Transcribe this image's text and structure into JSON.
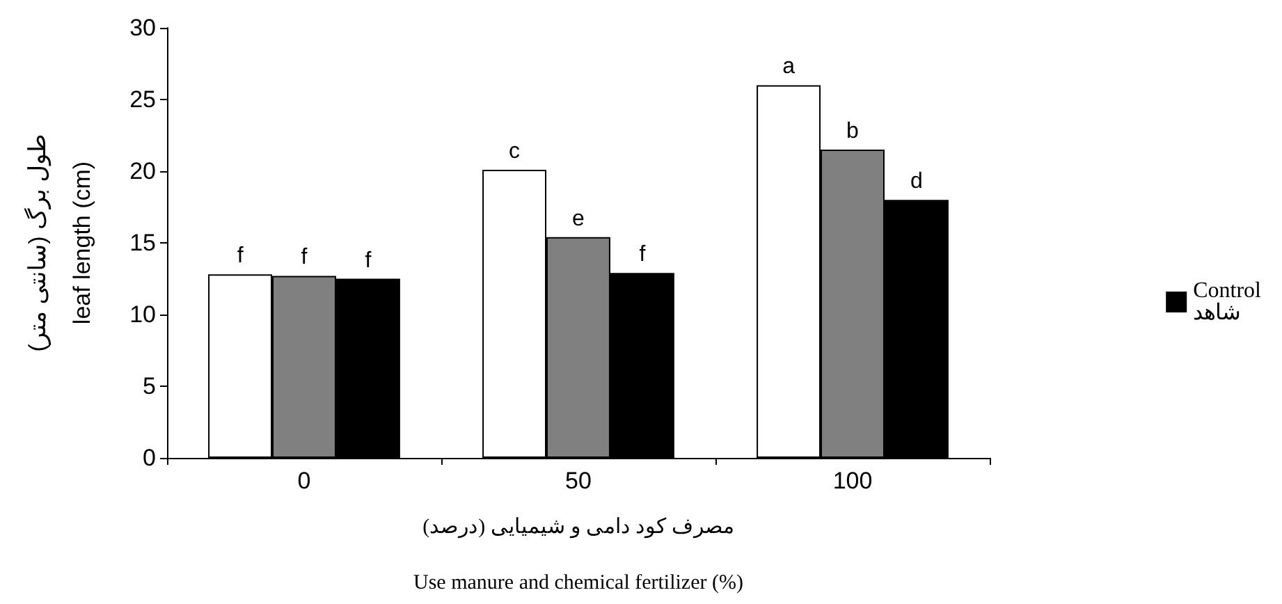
{
  "chart_data": {
    "type": "bar",
    "ylabel": "طول برگ (سانتی متر)\nleaf length (cm)",
    "xlabel": "مصرف کود دامی و شیمیایی (درصد)\n\nUse manure and chemical fertilizer (%)",
    "categories": [
      "0",
      "50",
      "100"
    ],
    "series": [
      {
        "color": "#ffffff",
        "values": [
          12.8,
          20.1,
          26
        ],
        "value_labels": [
          "f",
          "c",
          "a"
        ]
      },
      {
        "color": "#808080",
        "values": [
          12.7,
          15.4,
          21.5
        ],
        "value_labels": [
          "f",
          "e",
          "b"
        ]
      },
      {
        "name": "Control\nشاهد",
        "color": "#000000",
        "values": [
          12.5,
          12.9,
          18
        ],
        "value_labels": [
          "f",
          "f",
          "d"
        ]
      }
    ],
    "ylim": [
      0,
      30
    ],
    "yticks": [
      0,
      5,
      10,
      15,
      20,
      25,
      30
    ],
    "grid": false,
    "legend": "right"
  }
}
